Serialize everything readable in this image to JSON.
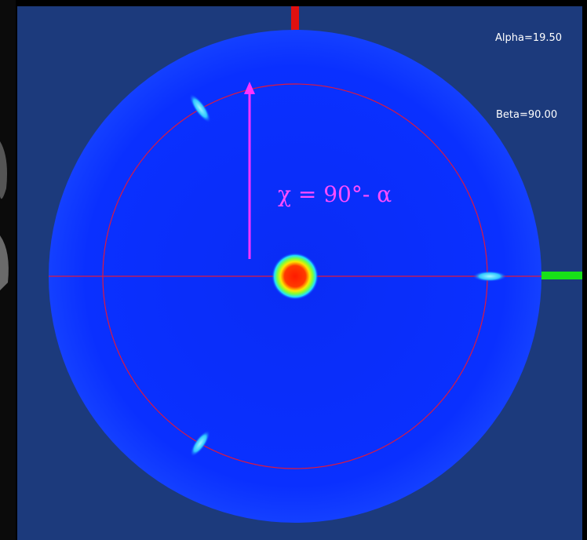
{
  "overlay": {
    "alpha_label": "Alpha=19.50",
    "beta_label": "Beta=90.00",
    "annotation": "χ = 90°- α"
  }
}
